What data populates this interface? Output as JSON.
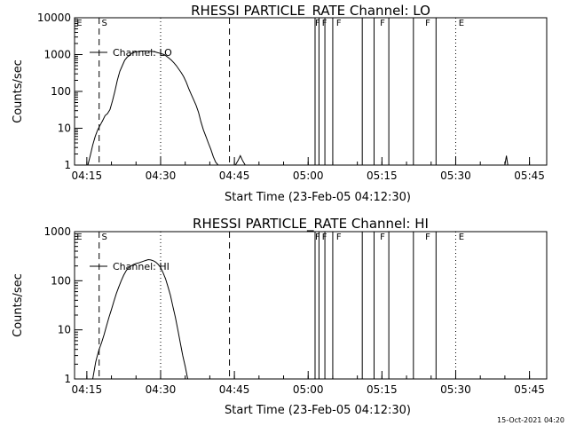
{
  "chart_data": [
    {
      "type": "line",
      "title": "RHESSI PARTICLE_RATE Channel: LO",
      "xlabel": "Start Time (23-Feb-05 04:12:30)",
      "ylabel": "Counts/sec",
      "yscale": "log",
      "ylim": [
        1,
        10000
      ],
      "xlim_minutes": [
        0,
        96
      ],
      "x_tick_labels": [
        "04:15",
        "04:30",
        "04:45",
        "05:00",
        "05:15",
        "05:30",
        "05:45"
      ],
      "x_tick_minutes": [
        2.5,
        17.5,
        32.5,
        47.5,
        62.5,
        77.5,
        92.5
      ],
      "y_tick_labels": [
        "1",
        "10",
        "100",
        "1000",
        "10000"
      ],
      "y_tick_values": [
        1,
        10,
        100,
        1000,
        10000
      ],
      "legend": "Channel: LO",
      "series": [
        {
          "name": "Channel: LO",
          "x_minutes": [
            2.7,
            3.2,
            3.7,
            4.2,
            4.7,
            5.2,
            5.7,
            6.2,
            6.7,
            7.2,
            7.7,
            8.2,
            8.7,
            9.2,
            9.7,
            10.2,
            10.7,
            11.2,
            11.7,
            12.2,
            12.7,
            13.2,
            13.7,
            14.2,
            14.7,
            15.2,
            15.7,
            16.2,
            16.7,
            17.2,
            17.7,
            18.2,
            18.7,
            19.2,
            19.7,
            20.2,
            20.7,
            21.2,
            21.7,
            22.2,
            22.7,
            23.2,
            23.7,
            24.2,
            24.7,
            25.2,
            25.7,
            26.2,
            26.7,
            27.2,
            27.7,
            28.2,
            28.7,
            29.2,
            29.7,
            30.2,
            30.7,
            31.2,
            31.7,
            32.2,
            32.7,
            33.2,
            33.7,
            34.2,
            34.7,
            35.2
          ],
          "values": [
            1,
            1.8,
            3.5,
            6,
            9,
            12,
            16,
            22,
            25,
            32,
            55,
            100,
            200,
            350,
            500,
            700,
            850,
            950,
            1100,
            1150,
            1200,
            1220,
            1250,
            1250,
            1250,
            1240,
            1220,
            1200,
            1150,
            1100,
            1050,
            1000,
            900,
            800,
            700,
            600,
            500,
            400,
            320,
            250,
            180,
            120,
            85,
            60,
            42,
            27,
            15,
            9,
            6,
            4,
            2.7,
            1.7,
            1.2,
            1,
            1,
            1,
            1,
            1,
            1,
            1,
            1,
            1.3,
            1.8,
            1.3,
            1,
            1
          ]
        },
        {
          "name": "spike",
          "x_minutes": [
            87.5,
            87.8,
            88.1
          ],
          "values": [
            1,
            1.8,
            1
          ]
        }
      ]
    },
    {
      "type": "line",
      "title": "RHESSI PARTICLE_RATE Channel: HI",
      "xlabel": "Start Time (23-Feb-05 04:12:30)",
      "ylabel": "Counts/sec",
      "yscale": "log",
      "ylim": [
        1,
        1000
      ],
      "xlim_minutes": [
        0,
        96
      ],
      "x_tick_labels": [
        "04:15",
        "04:30",
        "04:45",
        "05:00",
        "05:15",
        "05:30",
        "05:45"
      ],
      "x_tick_minutes": [
        2.5,
        17.5,
        32.5,
        47.5,
        62.5,
        77.5,
        92.5
      ],
      "y_tick_labels": [
        "1",
        "10",
        "100",
        "1000"
      ],
      "y_tick_values": [
        1,
        10,
        100,
        1000
      ],
      "legend": "Channel: HI",
      "series": [
        {
          "name": "Channel: HI",
          "x_minutes": [
            3.7,
            4.0,
            4.3,
            4.6,
            5.0,
            5.5,
            6.0,
            6.5,
            7.0,
            7.5,
            8.0,
            8.5,
            9.0,
            9.5,
            10.0,
            10.5,
            11.0,
            11.5,
            12.0,
            12.5,
            13.0,
            13.5,
            14.0,
            14.5,
            15.0,
            15.5,
            16.0,
            16.5,
            17.0,
            17.5,
            18.0,
            18.5,
            19.0,
            19.5,
            20.0,
            20.5,
            21.0,
            21.5,
            22.0,
            22.5,
            23.0
          ],
          "values": [
            1,
            1.5,
            2.2,
            2.9,
            4,
            5.5,
            8,
            12,
            18,
            26,
            38,
            55,
            75,
            100,
            130,
            160,
            185,
            200,
            215,
            225,
            230,
            240,
            250,
            260,
            270,
            265,
            255,
            240,
            215,
            185,
            145,
            110,
            75,
            50,
            30,
            18,
            10,
            5.5,
            3,
            1.8,
            1
          ]
        }
      ]
    }
  ],
  "annotations": {
    "dashed_lines_minutes": [
      5,
      31.5
    ],
    "dotted_lines_minutes": [
      17.5,
      77.5,
      96
    ],
    "solid_lines_minutes": [
      48.9,
      49.7,
      50.9,
      52.5,
      58.5,
      60.9,
      63.9,
      68.9,
      73.5
    ],
    "markers": [
      {
        "label": "E",
        "minute": 0.4
      },
      {
        "label": "S",
        "minute": 5.5
      },
      {
        "label": "F",
        "minute": 48.9
      },
      {
        "label": "F",
        "minute": 50.3
      },
      {
        "label": "F",
        "minute": 53.2
      },
      {
        "label": "F",
        "minute": 62.1
      },
      {
        "label": "F",
        "minute": 71.3
      },
      {
        "label": "E",
        "minute": 78.1
      }
    ]
  },
  "timestamp": "15-Oct-2021 04:20"
}
